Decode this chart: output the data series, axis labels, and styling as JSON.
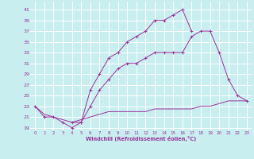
{
  "title": "",
  "xlabel": "Windchill (Refroidissement éolien,°C)",
  "bg_color": "#c8eef0",
  "grid_color": "#ffffff",
  "line_color": "#993399",
  "xlim": [
    -0.5,
    23.5
  ],
  "ylim": [
    18.5,
    42.5
  ],
  "xticks": [
    0,
    1,
    2,
    3,
    4,
    5,
    6,
    7,
    8,
    9,
    10,
    11,
    12,
    13,
    14,
    15,
    16,
    17,
    18,
    19,
    20,
    21,
    22,
    23
  ],
  "yticks": [
    19,
    21,
    23,
    25,
    27,
    29,
    31,
    33,
    35,
    37,
    39,
    41
  ],
  "curve1_x": [
    0,
    1,
    2,
    3,
    4,
    5,
    6,
    7,
    8,
    9,
    10,
    11,
    12,
    13,
    14,
    15,
    16,
    17
  ],
  "curve1_y": [
    23,
    21,
    21,
    20,
    19,
    20,
    26,
    29,
    32,
    33,
    35,
    36,
    37,
    39,
    39,
    40,
    41,
    37
  ],
  "curve2_x": [
    0,
    1,
    2,
    3,
    4,
    5,
    6,
    7,
    8,
    9,
    10,
    11,
    12,
    13,
    14,
    15,
    16,
    17,
    18,
    19,
    20,
    21,
    22,
    23
  ],
  "curve2_y": [
    23,
    21.5,
    21,
    20.5,
    20,
    20.5,
    21,
    21.5,
    22,
    22,
    22,
    22,
    22,
    22.5,
    22.5,
    22.5,
    22.5,
    22.5,
    23,
    23,
    23.5,
    24,
    24,
    24
  ],
  "curve3_x": [
    4,
    5,
    6,
    7,
    8,
    9,
    10,
    11,
    12,
    13,
    14,
    15,
    16,
    17,
    18,
    19,
    20,
    21,
    22,
    23
  ],
  "curve3_y": [
    20,
    20,
    23,
    26,
    28,
    30,
    31,
    31,
    32,
    33,
    33,
    33,
    33,
    36,
    37,
    37,
    33,
    28,
    25,
    24
  ],
  "figsize": [
    3.2,
    2.0
  ],
  "dpi": 100
}
